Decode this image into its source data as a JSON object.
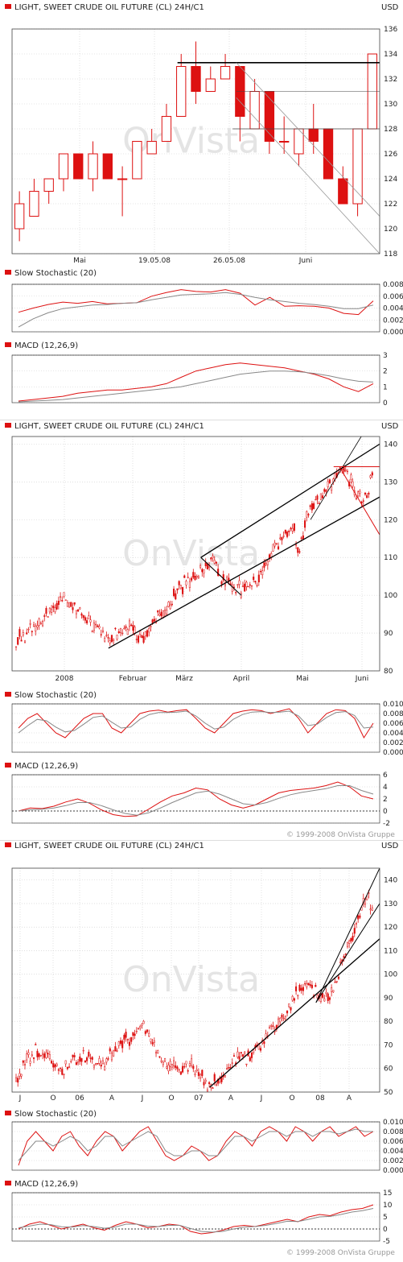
{
  "colors": {
    "candle_up": "#ffffff",
    "candle_down": "#dd1111",
    "line_red": "#dd1111",
    "line_grey": "#888888",
    "grid": "#cccccc",
    "frame": "#444444"
  },
  "watermark": "OnVista",
  "chart_data": [
    {
      "type": "candlestick",
      "title": "LIGHT, SWEET CRUDE OIL FUTURE (CL) 24H/C1",
      "unit": "USD",
      "copyright": "",
      "ylim": [
        118,
        136
      ],
      "yticks": [
        "118",
        "120",
        "122",
        "124",
        "126",
        "128",
        "130",
        "132",
        "134",
        "136"
      ],
      "xticks": [
        "Mai",
        "19.05.08",
        "26.05.08",
        "Juni"
      ],
      "candles": [
        [
          120,
          122,
          119,
          123
        ],
        [
          121,
          123,
          121,
          124
        ],
        [
          123,
          124,
          122,
          124
        ],
        [
          124,
          126,
          123,
          126
        ],
        [
          126,
          124,
          124,
          126
        ],
        [
          124,
          126,
          123,
          127
        ],
        [
          126,
          124,
          124,
          126
        ],
        [
          124,
          124,
          121,
          125
        ],
        [
          124,
          127,
          124,
          127
        ],
        [
          126,
          127,
          126,
          128
        ],
        [
          127,
          129,
          127,
          130
        ],
        [
          129,
          133,
          129,
          134
        ],
        [
          133,
          131,
          130,
          135
        ],
        [
          131,
          132,
          131,
          133
        ],
        [
          132,
          133,
          132,
          134
        ],
        [
          133,
          129,
          127,
          133
        ],
        [
          128,
          131,
          128,
          132
        ],
        [
          131,
          127,
          126,
          131
        ],
        [
          127,
          127,
          126,
          129
        ],
        [
          126,
          128,
          125,
          128
        ],
        [
          128,
          127,
          126,
          130
        ],
        [
          128,
          124,
          124,
          128
        ],
        [
          124,
          122,
          122,
          125
        ],
        [
          122,
          128,
          121,
          128
        ],
        [
          128,
          134,
          128,
          134
        ]
      ],
      "indicators": [
        {
          "title": "Slow Stochastic (20)",
          "ylim": [
            0,
            0.008
          ],
          "yticks": [
            "0.000",
            "0.002",
            "0.004",
            "0.006",
            "0.008"
          ],
          "series": [
            {
              "name": "",
              "color": "red",
              "values": [
                0.0033,
                0.004,
                0.0046,
                0.005,
                0.0048,
                0.0051,
                0.0047,
                0.0048,
                0.0049,
                0.006,
                0.0066,
                0.0071,
                0.0068,
                0.0067,
                0.0071,
                0.0065,
                0.0045,
                0.0058,
                0.0043,
                0.0044,
                0.0043,
                0.004,
                0.0031,
                0.0029,
                0.0052
              ]
            },
            {
              "name": "",
              "color": "grey",
              "values": [
                0.0008,
                0.0022,
                0.0032,
                0.0039,
                0.0042,
                0.0045,
                0.0046,
                0.0048,
                0.0049,
                0.0054,
                0.0058,
                0.0062,
                0.0063,
                0.0064,
                0.0066,
                0.0063,
                0.0058,
                0.0054,
                0.0051,
                0.0048,
                0.0046,
                0.0043,
                0.0039,
                0.0039,
                0.0045
              ]
            }
          ]
        },
        {
          "title": "MACD (12,26,9)",
          "ylim": [
            0,
            3
          ],
          "yticks": [
            "0",
            "1",
            "2",
            "3"
          ],
          "series": [
            {
              "name": "",
              "color": "red",
              "values": [
                0.1,
                0.2,
                0.3,
                0.4,
                0.6,
                0.7,
                0.8,
                0.8,
                0.9,
                1.0,
                1.2,
                1.6,
                2.0,
                2.2,
                2.4,
                2.5,
                2.4,
                2.3,
                2.2,
                2.0,
                1.8,
                1.5,
                1.0,
                0.7,
                1.2
              ]
            },
            {
              "name": "",
              "color": "grey",
              "values": [
                0.05,
                0.1,
                0.15,
                0.2,
                0.3,
                0.4,
                0.5,
                0.6,
                0.7,
                0.8,
                0.9,
                1.0,
                1.2,
                1.4,
                1.6,
                1.8,
                1.9,
                2.0,
                2.0,
                1.95,
                1.85,
                1.7,
                1.5,
                1.35,
                1.3
              ]
            }
          ]
        }
      ]
    },
    {
      "type": "candlestick",
      "title": "LIGHT, SWEET CRUDE OIL FUTURE (CL) 24H/C1",
      "unit": "USD",
      "copyright": "© 1999-2008 OnVista Gruppe",
      "ylim": [
        80,
        142
      ],
      "yticks": [
        "80",
        "90",
        "100",
        "110",
        "120",
        "130",
        "140"
      ],
      "xticks": [
        "2008",
        "Februar",
        "März",
        "April",
        "Mai",
        "Juni"
      ],
      "path": [
        [
          0,
          88
        ],
        [
          6,
          92
        ],
        [
          12,
          95
        ],
        [
          16,
          100
        ],
        [
          22,
          96
        ],
        [
          28,
          91
        ],
        [
          32,
          88
        ],
        [
          36,
          90
        ],
        [
          40,
          92
        ],
        [
          44,
          88
        ],
        [
          48,
          93
        ],
        [
          52,
          96
        ],
        [
          56,
          101
        ],
        [
          60,
          104
        ],
        [
          64,
          107
        ],
        [
          68,
          110
        ],
        [
          72,
          104
        ],
        [
          76,
          102
        ],
        [
          80,
          101
        ],
        [
          84,
          105
        ],
        [
          88,
          110
        ],
        [
          92,
          115
        ],
        [
          96,
          118
        ],
        [
          98,
          112
        ],
        [
          102,
          124
        ],
        [
          106,
          127
        ],
        [
          110,
          130
        ],
        [
          112,
          134
        ],
        [
          116,
          130
        ],
        [
          120,
          124
        ],
        [
          124,
          133
        ]
      ],
      "indicators": [
        {
          "title": "Slow Stochastic (20)",
          "ylim": [
            0,
            0.01
          ],
          "yticks": [
            "0.000",
            "0.002",
            "0.004",
            "0.006",
            "0.008",
            "0.010"
          ],
          "series": [
            {
              "name": "",
              "color": "red",
              "values": [
                0.005,
                0.007,
                0.008,
                0.006,
                0.004,
                0.003,
                0.005,
                0.007,
                0.008,
                0.008,
                0.005,
                0.004,
                0.006,
                0.008,
                0.0085,
                0.0087,
                0.0083,
                0.0086,
                0.0088,
                0.007,
                0.005,
                0.004,
                0.006,
                0.008,
                0.0085,
                0.0088,
                0.0086,
                0.008,
                0.0085,
                0.009,
                0.007,
                0.004,
                0.006,
                0.008,
                0.0088,
                0.0086,
                0.007,
                0.003,
                0.006
              ]
            },
            {
              "name": "",
              "color": "grey",
              "values": [
                0.004,
                0.0055,
                0.0068,
                0.0065,
                0.0052,
                0.0042,
                0.0045,
                0.0058,
                0.0072,
                0.0075,
                0.0062,
                0.005,
                0.0052,
                0.0068,
                0.0078,
                0.0082,
                0.0082,
                0.0083,
                0.0085,
                0.0075,
                0.006,
                0.0048,
                0.0052,
                0.0068,
                0.0078,
                0.0083,
                0.0084,
                0.0082,
                0.0083,
                0.0085,
                0.0075,
                0.0055,
                0.0058,
                0.0072,
                0.0082,
                0.0084,
                0.0076,
                0.005,
                0.0052
              ]
            }
          ]
        },
        {
          "title": "MACD (12,26,9)",
          "ylim": [
            -2,
            6
          ],
          "yticks": [
            "-2",
            "0",
            "2",
            "4",
            "6"
          ],
          "series": [
            {
              "name": "",
              "color": "red",
              "values": [
                0.0,
                0.5,
                0.4,
                0.8,
                1.5,
                2.0,
                1.3,
                0.2,
                -0.6,
                -0.9,
                -0.8,
                0.3,
                1.5,
                2.5,
                3.0,
                3.8,
                3.5,
                2.0,
                1.0,
                0.5,
                1.0,
                2.0,
                3.0,
                3.4,
                3.6,
                3.8,
                4.2,
                4.8,
                4.0,
                2.5,
                2.0
              ]
            },
            {
              "name": "",
              "color": "grey",
              "values": [
                0.0,
                0.2,
                0.3,
                0.5,
                0.9,
                1.4,
                1.4,
                0.9,
                0.2,
                -0.4,
                -0.7,
                -0.3,
                0.5,
                1.4,
                2.2,
                3.0,
                3.3,
                2.8,
                2.0,
                1.2,
                1.0,
                1.4,
                2.1,
                2.7,
                3.1,
                3.4,
                3.7,
                4.2,
                4.2,
                3.4,
                2.8
              ]
            }
          ]
        }
      ]
    },
    {
      "type": "candlestick",
      "title": "LIGHT, SWEET CRUDE OIL FUTURE (CL) 24H/C1",
      "unit": "USD",
      "copyright": "© 1999-2008 OnVista Gruppe",
      "ylim": [
        50,
        145
      ],
      "yticks": [
        "50",
        "60",
        "70",
        "80",
        "90",
        "100",
        "110",
        "120",
        "130",
        "140"
      ],
      "xticks": [
        "J",
        "O",
        "06",
        "A",
        "J",
        "O",
        "07",
        "A",
        "J",
        "O",
        "08",
        "A"
      ],
      "path": [
        [
          0,
          55
        ],
        [
          4,
          63
        ],
        [
          8,
          68
        ],
        [
          12,
          66
        ],
        [
          16,
          62
        ],
        [
          20,
          60
        ],
        [
          24,
          64
        ],
        [
          28,
          66
        ],
        [
          32,
          63
        ],
        [
          36,
          61
        ],
        [
          40,
          67
        ],
        [
          44,
          71
        ],
        [
          48,
          74
        ],
        [
          52,
          78
        ],
        [
          56,
          72
        ],
        [
          60,
          63
        ],
        [
          64,
          60
        ],
        [
          68,
          59
        ],
        [
          72,
          61
        ],
        [
          76,
          57
        ],
        [
          80,
          52
        ],
        [
          84,
          56
        ],
        [
          88,
          61
        ],
        [
          92,
          65
        ],
        [
          96,
          65
        ],
        [
          100,
          70
        ],
        [
          104,
          73
        ],
        [
          108,
          80
        ],
        [
          112,
          85
        ],
        [
          116,
          92
        ],
        [
          120,
          97
        ],
        [
          124,
          92
        ],
        [
          128,
          88
        ],
        [
          132,
          97
        ],
        [
          136,
          110
        ],
        [
          140,
          118
        ],
        [
          144,
          132
        ],
        [
          148,
          130
        ]
      ],
      "indicators": [
        {
          "title": "Slow Stochastic (20)",
          "ylim": [
            0,
            0.01
          ],
          "yticks": [
            "0.000",
            "0.002",
            "0.004",
            "0.006",
            "0.008",
            "0.010"
          ],
          "series": [
            {
              "name": "",
              "color": "red",
              "values": [
                0.001,
                0.006,
                0.008,
                0.006,
                0.004,
                0.007,
                0.008,
                0.005,
                0.003,
                0.006,
                0.008,
                0.007,
                0.004,
                0.006,
                0.008,
                0.009,
                0.006,
                0.003,
                0.002,
                0.003,
                0.005,
                0.004,
                0.002,
                0.003,
                0.006,
                0.008,
                0.007,
                0.005,
                0.008,
                0.009,
                0.008,
                0.006,
                0.009,
                0.008,
                0.006,
                0.008,
                0.009,
                0.007,
                0.008,
                0.009,
                0.007,
                0.008
              ]
            },
            {
              "name": "",
              "color": "grey",
              "values": [
                0.002,
                0.004,
                0.006,
                0.006,
                0.005,
                0.006,
                0.007,
                0.006,
                0.004,
                0.005,
                0.007,
                0.007,
                0.005,
                0.006,
                0.007,
                0.008,
                0.007,
                0.004,
                0.003,
                0.003,
                0.004,
                0.004,
                0.003,
                0.003,
                0.005,
                0.007,
                0.007,
                0.006,
                0.007,
                0.008,
                0.008,
                0.007,
                0.008,
                0.008,
                0.007,
                0.008,
                0.008,
                0.0075,
                0.008,
                0.0085,
                0.008,
                0.008
              ]
            }
          ]
        },
        {
          "title": "MACD (12,26,9)",
          "ylim": [
            -5,
            15
          ],
          "yticks": [
            "-5",
            "0",
            "5",
            "10",
            "15"
          ],
          "series": [
            {
              "name": "",
              "color": "red",
              "values": [
                0.0,
                2.0,
                3.0,
                1.5,
                0.0,
                1.0,
                2.0,
                0.5,
                -0.5,
                1.5,
                3.0,
                2.0,
                0.5,
                1.0,
                2.0,
                1.5,
                -1.0,
                -2.0,
                -1.5,
                -0.5,
                1.0,
                1.5,
                1.0,
                2.0,
                3.0,
                4.0,
                3.0,
                5.0,
                6.0,
                5.5,
                7.0,
                8.0,
                8.5,
                10.0
              ]
            },
            {
              "name": "",
              "color": "grey",
              "values": [
                0.5,
                1.2,
                2.0,
                1.8,
                0.9,
                0.8,
                1.4,
                1.0,
                0.3,
                0.8,
                2.0,
                2.0,
                1.2,
                1.0,
                1.5,
                1.5,
                0.2,
                -1.0,
                -1.3,
                -1.0,
                0.0,
                0.8,
                1.0,
                1.5,
                2.3,
                3.2,
                3.1,
                4.0,
                5.0,
                5.2,
                6.0,
                7.0,
                7.6,
                8.5
              ]
            }
          ]
        }
      ]
    }
  ]
}
